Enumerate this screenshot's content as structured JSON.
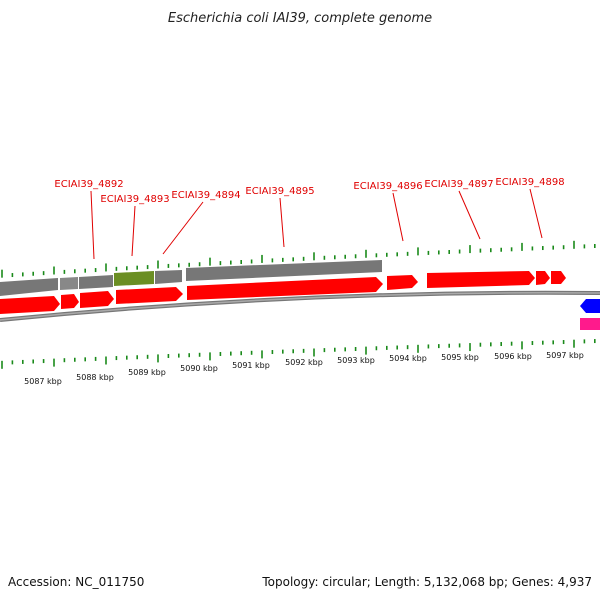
{
  "header": {
    "title": "Escherichia coli IAI39, complete genome"
  },
  "footer": {
    "accession": "Accession: NC_011750",
    "summary": "Topology: circular; Length: 5,132,068 bp; Genes: 4,937"
  },
  "colors": {
    "gene_forward": "#ff0000",
    "gene_reverse": "#0000ff",
    "gene_other": "#ff1a8c",
    "track_gray": "#777777",
    "track_highlight": "#6b8e23",
    "tick": "#1a8a1a",
    "label": "#e00000"
  },
  "scale": {
    "unit": "kbp",
    "tick_labels": [
      "5087 kbp",
      "5088 kbp",
      "5089 kbp",
      "5090 kbp",
      "5091 kbp",
      "5092 kbp",
      "5093 kbp",
      "5094 kbp",
      "5095 kbp",
      "5096 kbp",
      "5097 kbp"
    ]
  },
  "gene_labels": [
    "ECIAI39_4892",
    "ECIAI39_4893",
    "ECIAI39_4894",
    "ECIAI39_4895",
    "ECIAI39_4896",
    "ECIAI39_4897",
    "ECIAI39_4898"
  ]
}
